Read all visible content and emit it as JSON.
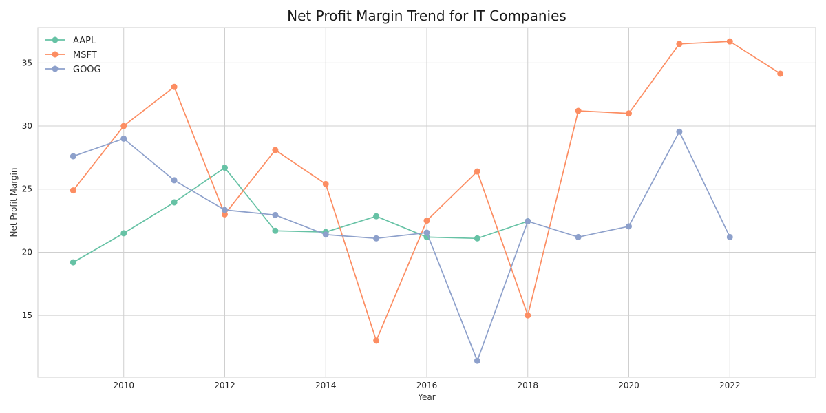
{
  "chart_data": {
    "type": "line",
    "title": "Net Profit Margin Trend for IT Companies",
    "xlabel": "Year",
    "ylabel": "Net Profit Margin",
    "xlim": [
      2008.3,
      2023.7
    ],
    "ylim": [
      10.1,
      37.8
    ],
    "xticks": [
      2010,
      2012,
      2014,
      2016,
      2018,
      2020,
      2022
    ],
    "yticks": [
      15,
      20,
      25,
      30,
      35
    ],
    "grid": true,
    "legend_position": "top-left",
    "series": [
      {
        "name": "AAPL",
        "color": "#66c2a5",
        "x": [
          2009,
          2010,
          2011,
          2012,
          2013,
          2014,
          2015,
          2016,
          2017,
          2018
        ],
        "y": [
          19.2,
          21.5,
          23.95,
          26.7,
          21.7,
          21.6,
          22.85,
          21.2,
          21.1,
          22.45
        ]
      },
      {
        "name": "MSFT",
        "color": "#fc8d62",
        "x": [
          2009,
          2010,
          2011,
          2012,
          2013,
          2014,
          2015,
          2016,
          2017,
          2018,
          2019,
          2020,
          2021,
          2022,
          2023
        ],
        "y": [
          24.9,
          30.0,
          33.1,
          23.0,
          28.1,
          25.4,
          13.0,
          22.5,
          26.4,
          15.0,
          31.2,
          31.0,
          36.5,
          36.7,
          34.15
        ]
      },
      {
        "name": "GOOG",
        "color": "#8da0cb",
        "x": [
          2009,
          2010,
          2011,
          2012,
          2013,
          2014,
          2015,
          2016,
          2017,
          2018,
          2019,
          2020,
          2021,
          2022
        ],
        "y": [
          27.6,
          29.0,
          25.7,
          23.35,
          22.95,
          21.4,
          21.1,
          21.55,
          11.4,
          22.45,
          21.2,
          22.05,
          29.55,
          21.2
        ]
      }
    ]
  }
}
